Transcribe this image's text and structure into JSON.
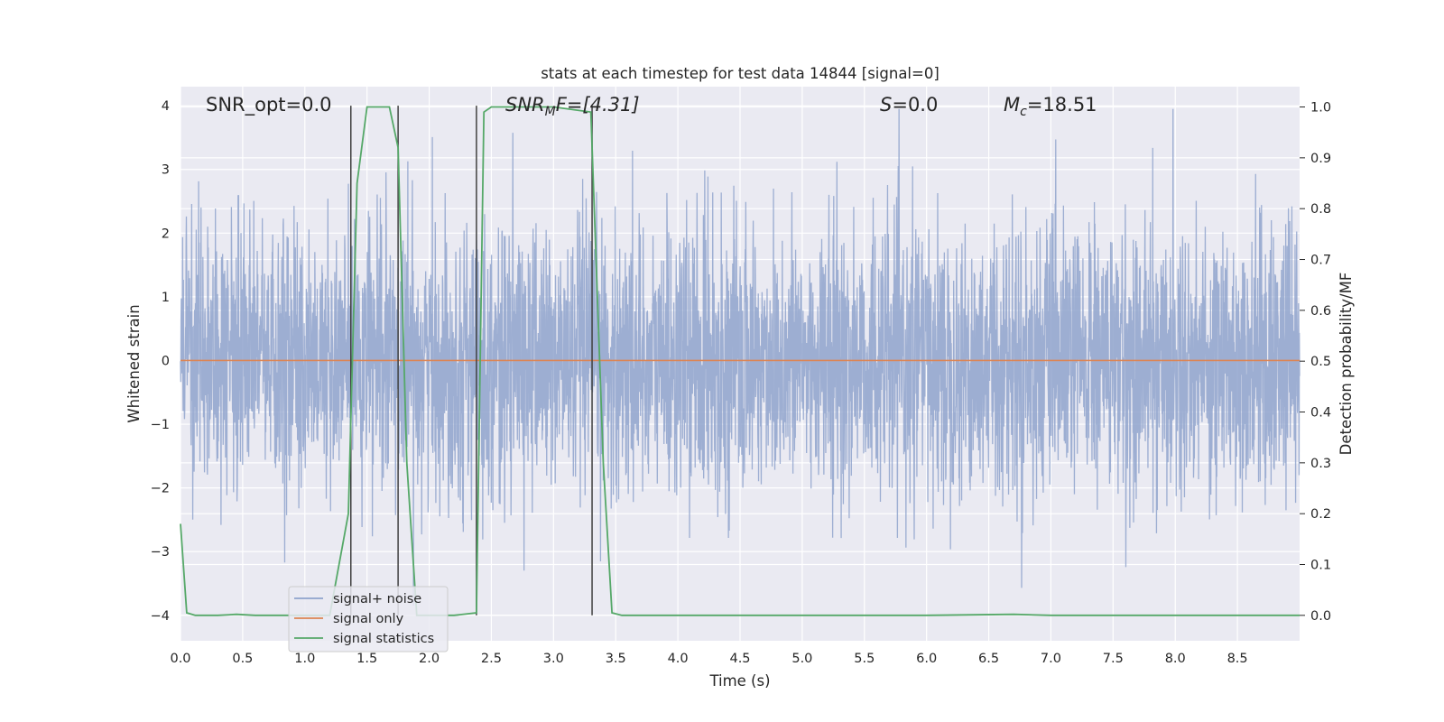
{
  "chart_data": {
    "type": "line",
    "title": "stats at each timestep for test data 14844 [signal=0]",
    "xlabel": "Time (s)",
    "ylabel_left": "Whitened strain",
    "ylabel_right": "Detection probability/MF",
    "xlim": [
      0,
      9.0
    ],
    "ylim_left": [
      -4.4,
      4.3
    ],
    "ylim_right": [
      -0.05,
      1.04
    ],
    "x_ticks": [
      "0.0",
      "0.5",
      "1.0",
      "1.5",
      "2.0",
      "2.5",
      "3.0",
      "3.5",
      "4.0",
      "4.5",
      "5.0",
      "5.5",
      "6.0",
      "6.5",
      "7.0",
      "7.5",
      "8.0",
      "8.5"
    ],
    "y_left_ticks": [
      "4",
      "3",
      "2",
      "1",
      "0",
      "−1",
      "−2",
      "−3",
      "−4"
    ],
    "y_right_ticks": [
      "1.0",
      "0.9",
      "0.8",
      "0.7",
      "0.6",
      "0.5",
      "0.4",
      "0.3",
      "0.2",
      "0.1",
      "0.0"
    ],
    "grid": true,
    "legend_position": "lower-left",
    "annotations": {
      "snr_opt": "SNR_opt=0.0",
      "snr_mf_sym": "SNR",
      "snr_mf_sub": "M",
      "snr_mf_rest": "F=[4.31]",
      "s_sym": "S",
      "s_rest": "=0.0",
      "mc_sym": "M",
      "mc_sub": "c",
      "mc_rest": "=18.51"
    },
    "series": [
      {
        "name": "signal+ noise",
        "color": "#8fa3cc",
        "kind": "whitened noise, amplitude mostly within ±2.5, peaks to about ±3.9"
      },
      {
        "name": "signal only",
        "color": "#dd8452",
        "x": [
          0,
          9.0
        ],
        "y": [
          0,
          0
        ]
      },
      {
        "name": "signal statistics",
        "color": "#55a868",
        "axis": "right",
        "x": [
          0.0,
          0.05,
          0.12,
          0.3,
          0.45,
          0.6,
          1.0,
          1.2,
          1.35,
          1.42,
          1.5,
          1.6,
          1.68,
          1.75,
          1.82,
          1.9,
          2.2,
          2.38,
          2.44,
          2.5,
          2.8,
          3.0,
          3.3,
          3.4,
          3.47,
          3.55,
          4.0,
          5.0,
          6.0,
          6.7,
          7.0,
          8.0,
          9.0
        ],
        "y": [
          0.18,
          0.005,
          0.0,
          0.0,
          0.002,
          0.0,
          0.0,
          0.0,
          0.2,
          0.85,
          1.0,
          1.0,
          1.0,
          0.92,
          0.3,
          0.0,
          0.0,
          0.005,
          0.99,
          1.0,
          1.0,
          1.0,
          0.99,
          0.3,
          0.005,
          0.0,
          0.0,
          0.0,
          0.0,
          0.002,
          0.0,
          0.0,
          0.0
        ]
      }
    ],
    "vertical_markers": {
      "color": "#404040",
      "x": [
        1.37,
        1.75,
        2.38,
        3.31
      ],
      "y_top": 4.0,
      "y_bottom": -4.0
    }
  }
}
